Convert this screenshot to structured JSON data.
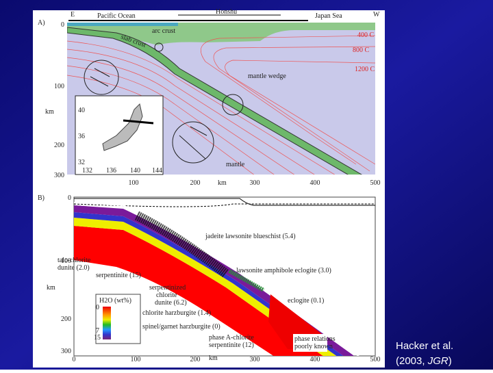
{
  "slide": {
    "caption": {
      "line1": "Hacker et al.",
      "line2_before": "(2003, ",
      "line2_italic": "JGR",
      "line2_after": ")"
    }
  },
  "figure_a": {
    "panel_label": "A)",
    "east": "E",
    "west": "W",
    "pacific": "Pacific Ocean",
    "honshu": "Honshu",
    "japan_sea": "Japan Sea",
    "arc_crust": "arc crust",
    "slab_crust": "slab crust",
    "isotherms": [
      "400 C",
      "800 C",
      "1200 C"
    ],
    "mantle_wedge": "mantle wedge",
    "mantle": "mantle",
    "y_axis_label": "km",
    "x_axis_label": "km",
    "yticks": [
      "0",
      "100",
      "200",
      "300"
    ],
    "xticks": [
      "100",
      "200",
      "300",
      "400",
      "500"
    ],
    "inset": {
      "lat_labels": [
        "40",
        "36",
        "32"
      ],
      "lon_labels": [
        "132",
        "136",
        "140",
        "144"
      ]
    }
  },
  "figure_b": {
    "panel_label": "B)",
    "y_axis_label": "km",
    "x_axis_label": "km",
    "yticks": [
      "0",
      "100",
      "200",
      "300"
    ],
    "xticks": [
      "0",
      "100",
      "200",
      "300",
      "400",
      "500"
    ],
    "labels": {
      "blueschist": "jadeite lawsonite blueschist (5.4)",
      "amphibole_eclogite": "lawsonite amphibole eclogite (3.0)",
      "eclogite": "eclogite (0.1)",
      "talc": [
        "talc-chlorite",
        "dunite (2.0)"
      ],
      "serpentinite": "serpentinite (15)",
      "serp_dunite": [
        "serpentinized",
        "chlorite",
        "dunite (6.2)"
      ],
      "chlorite_harz": "chlorite harzburgite (1.4)",
      "spinel_harz": "spinel/garnet harzburgite (0)",
      "phase_a": [
        "phase A-chlorite",
        "serpentinite (12)"
      ],
      "phase_relations": [
        "phase relations",
        "poorly known"
      ]
    },
    "legend": {
      "title": "H2O (wt%)",
      "ticks": [
        "0",
        "7",
        "15"
      ]
    }
  }
}
